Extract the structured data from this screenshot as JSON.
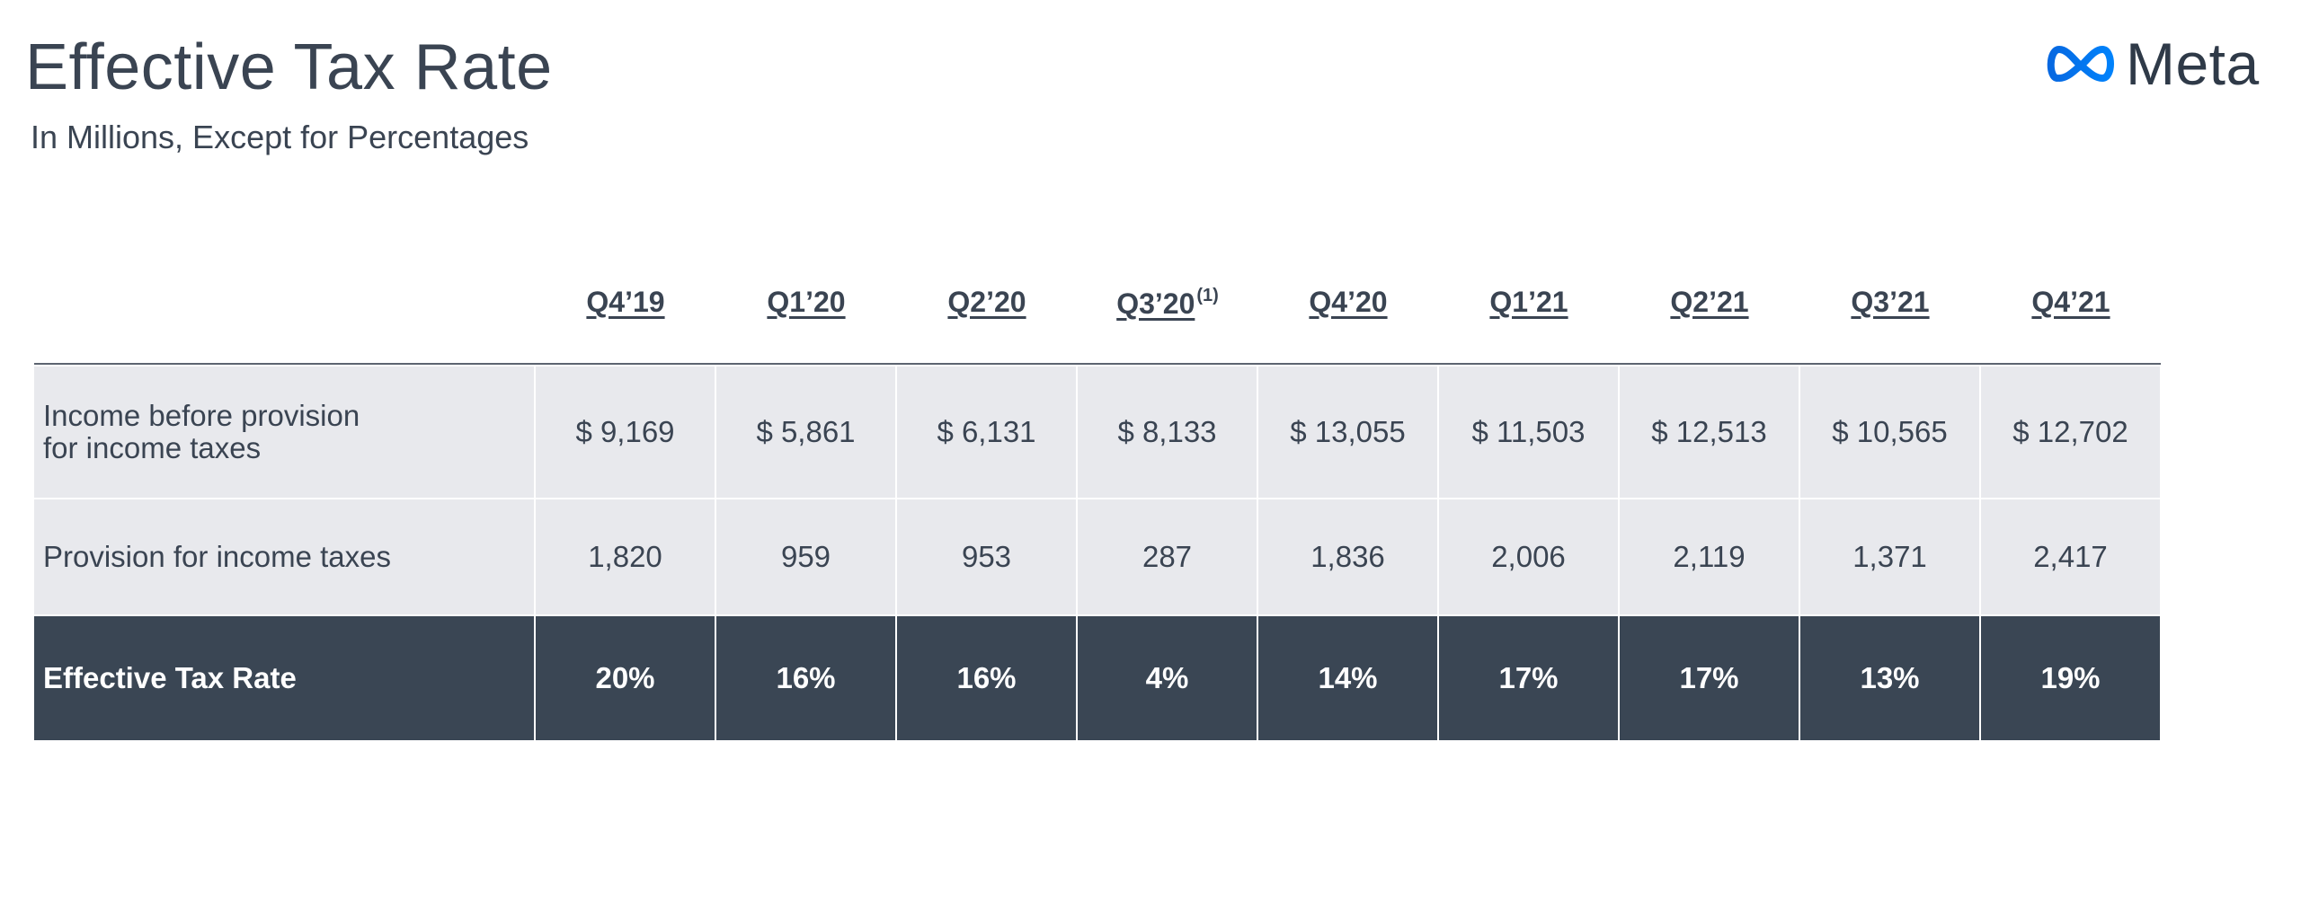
{
  "title": "Effective Tax Rate",
  "subtitle": "In Millions, Except for Percentages",
  "logo": {
    "icon": "meta-infinity-logo-icon",
    "wordmark": "Meta",
    "colors": [
      "#0668E1",
      "#0082FB",
      "#2f3a48"
    ]
  },
  "table": {
    "columns": [
      "Q4’19",
      "Q1’20",
      "Q2’20",
      "Q3’20",
      "Q4’20",
      "Q1’21",
      "Q2’21",
      "Q3’21",
      "Q4’21"
    ],
    "footnote_marker": "(1)",
    "rows": [
      {
        "label_line1": "Income before provision",
        "label_line2": "for income taxes",
        "values": [
          "$ 9,169",
          "$ 5,861",
          "$ 6,131",
          "$ 8,133",
          "$ 13,055",
          "$ 11,503",
          "$ 12,513",
          "$ 10,565",
          "$ 12,702"
        ]
      },
      {
        "label": "Provision for income taxes",
        "values": [
          "1,820",
          "959",
          "953",
          "287",
          "1,836",
          "2,006",
          "2,119",
          "1,371",
          "2,417"
        ]
      },
      {
        "label": "Effective Tax Rate",
        "values": [
          "20%",
          "16%",
          "16%",
          "4%",
          "14%",
          "17%",
          "17%",
          "13%",
          "19%"
        ]
      }
    ]
  },
  "colors": {
    "text": "#3a4452",
    "light_cell": "#e8e9ed",
    "dark_row": "#3a4654"
  }
}
